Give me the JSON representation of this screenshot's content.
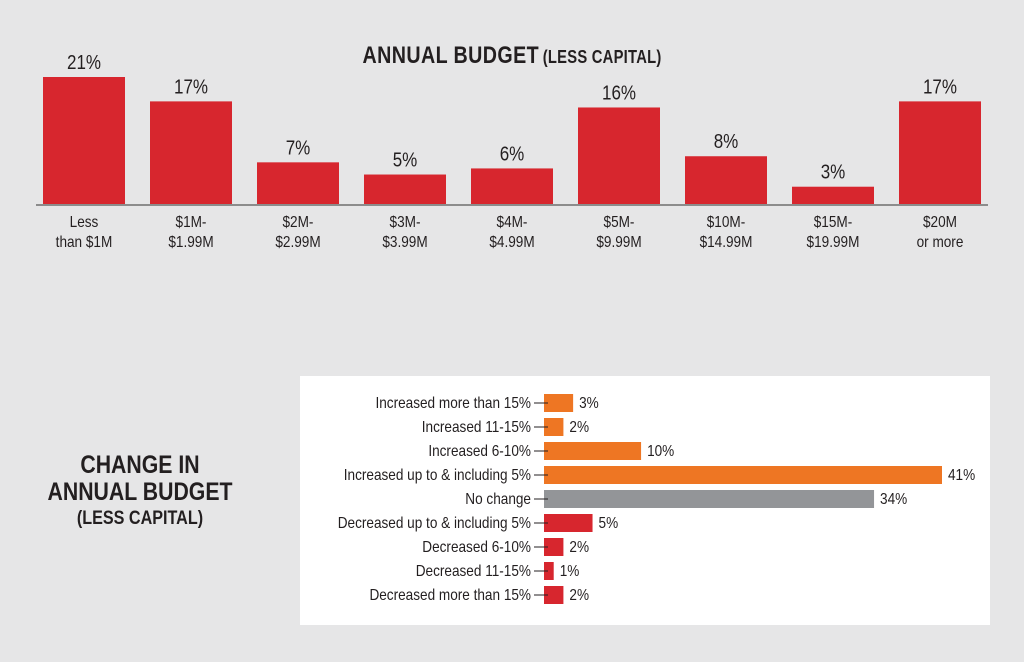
{
  "chart_data": [
    {
      "type": "bar",
      "title": "ANNUAL BUDGET",
      "subtitle": "(LESS CAPITAL)",
      "categories": [
        [
          "Less",
          "than $1M"
        ],
        [
          "$1M-",
          "$1.99M"
        ],
        [
          "$2M-",
          "$2.99M"
        ],
        [
          "$3M-",
          "$3.99M"
        ],
        [
          "$4M-",
          "$4.99M"
        ],
        [
          "$5M-",
          "$9.99M"
        ],
        [
          "$10M-",
          "$14.99M"
        ],
        [
          "$15M-",
          "$19.99M"
        ],
        [
          "$20M",
          "or more"
        ]
      ],
      "values": [
        21,
        17,
        7,
        5,
        6,
        16,
        8,
        3,
        17
      ],
      "value_labels": [
        "21%",
        "17%",
        "7%",
        "5%",
        "6%",
        "16%",
        "8%",
        "3%",
        "17%"
      ],
      "unit": "%",
      "ylim": [
        0,
        21
      ],
      "grid": false,
      "bar_color": "#d7262e"
    },
    {
      "type": "bar",
      "orientation": "horizontal",
      "title_lines": [
        "CHANGE IN",
        "ANNUAL BUDGET",
        "(LESS CAPITAL)"
      ],
      "categories": [
        "Increased more than 15%",
        "Increased 11-15%",
        "Increased 6-10%",
        "Increased up to & including 5%",
        "No change",
        "Decreased up to & including 5%",
        "Decreased 6-10%",
        "Decreased 11-15%",
        "Decreased more than 15%"
      ],
      "values": [
        3,
        2,
        10,
        41,
        34,
        5,
        2,
        1,
        2
      ],
      "value_labels": [
        "3%",
        "2%",
        "10%",
        "41%",
        "34%",
        "5%",
        "2%",
        "1%",
        "2%"
      ],
      "unit": "%",
      "grid": false,
      "bar_colors": [
        "#ee7623",
        "#ee7623",
        "#ee7623",
        "#ee7623",
        "#939598",
        "#d7262e",
        "#d7262e",
        "#d7262e",
        "#d7262e"
      ]
    }
  ]
}
